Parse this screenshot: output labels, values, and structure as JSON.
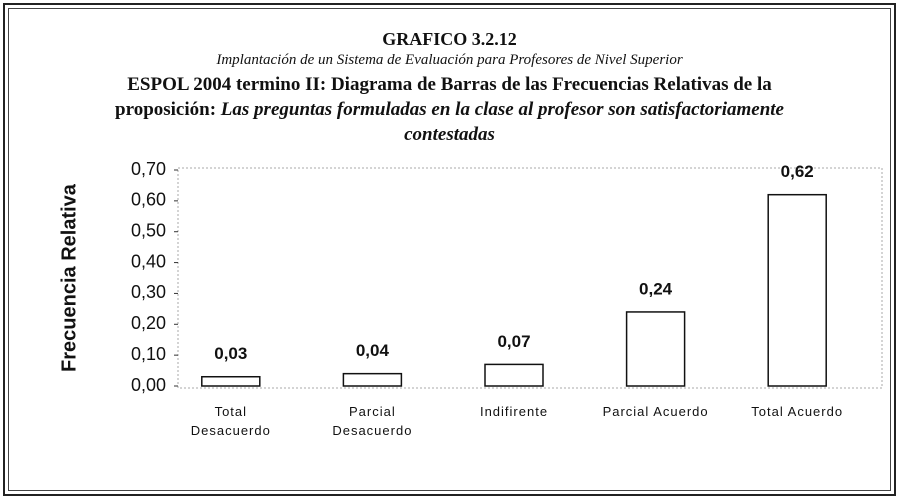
{
  "chart_data": {
    "type": "bar",
    "heading": "GRAFICO 3.2.12",
    "subtitle": "Implantación de un Sistema de Evaluación para Profesores de Nivel Superior",
    "title": "ESPOL 2004 termino II: Diagrama de Barras de las Frecuencias Relativas de la proposición:",
    "proposition": "Las preguntas formuladas en la clase al profesor son satisfactoriamente contestadas",
    "y_label": "Frecuencia Relativa",
    "categories": [
      "Total Desacuerdo",
      "Parcial Desacuerdo",
      "Indifirente",
      "Parcial Acuerdo",
      "Total Acuerdo"
    ],
    "values": [
      0.03,
      0.04,
      0.07,
      0.24,
      0.62
    ],
    "value_labels": [
      "0,03",
      "0,04",
      "0,07",
      "0,24",
      "0,62"
    ],
    "color": "#ffffff",
    "ylim": [
      0,
      0.7
    ],
    "yticks": [
      {
        "value": 0,
        "label": "0,00"
      },
      {
        "value": 0.1,
        "label": "0,10"
      },
      {
        "value": 0.2,
        "label": "0,20"
      },
      {
        "value": 0.3,
        "label": "0,30"
      },
      {
        "value": 0.4,
        "label": "0,40"
      },
      {
        "value": 0.5,
        "label": "0,50"
      },
      {
        "value": 0.6,
        "label": "0,60"
      },
      {
        "value": 0.7,
        "label": "0,70"
      }
    ],
    "grid": false
  }
}
